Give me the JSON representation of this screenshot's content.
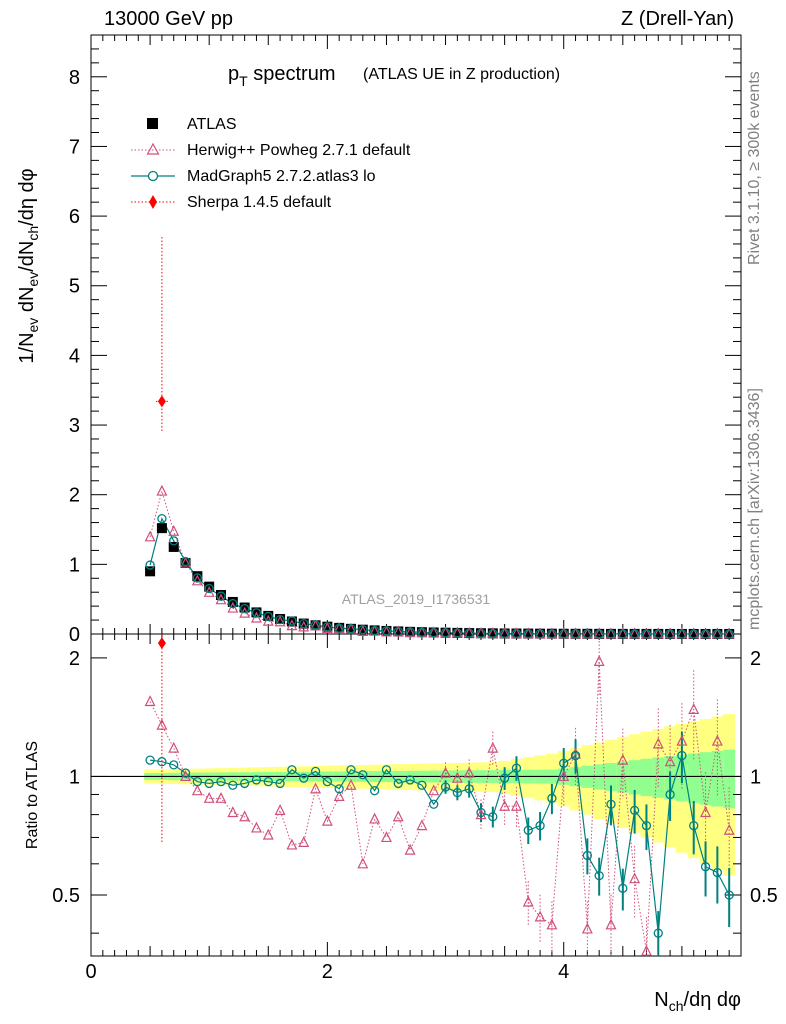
{
  "header": {
    "energy": "13000 GeV pp",
    "process": "Z (Drell-Yan)"
  },
  "side_labels": {
    "rivet": "Rivet 3.1.10, ≥ 300k events",
    "mcplots": "mcplots.cern.ch [arXiv:1306.3436]"
  },
  "chart_data": {
    "type": "scatter",
    "title": "p_T spectrum",
    "title_main": "p",
    "title_sub": "T",
    "title_rest": " spectrum",
    "title_note": "(ATLAS UE in Z production)",
    "analysis_label": "ATLAS_2019_I1736531",
    "xlabel": "N_ch/dη dφ",
    "ylabel": "1/N_ev dN_ev/dN_ch/dη dφ",
    "ratio_ylabel": "Ratio to ATLAS",
    "xlim": [
      0,
      5.5
    ],
    "ylim": [
      0,
      8.6
    ],
    "ratio_ylim": [
      0.35,
      2.3
    ],
    "x_ticks": [
      "0",
      "2",
      "4"
    ],
    "y_ticks": [
      "0",
      "1",
      "2",
      "3",
      "4",
      "5",
      "6",
      "7",
      "8"
    ],
    "ratio_ticks": [
      "0.5",
      "1",
      "2"
    ],
    "x": [
      0.5,
      0.6,
      0.7,
      0.8,
      0.9,
      1.0,
      1.1,
      1.2,
      1.3,
      1.4,
      1.5,
      1.6,
      1.7,
      1.8,
      1.9,
      2.0,
      2.1,
      2.2,
      2.3,
      2.4,
      2.5,
      2.6,
      2.7,
      2.8,
      2.9,
      3.0,
      3.1,
      3.2,
      3.3,
      3.4,
      3.5,
      3.6,
      3.7,
      3.8,
      3.9,
      4.0,
      4.1,
      4.2,
      4.3,
      4.4,
      4.5,
      4.6,
      4.7,
      4.8,
      4.9,
      5.0,
      5.1,
      5.2,
      5.3,
      5.4
    ],
    "series": [
      {
        "name": "ATLAS",
        "label": "ATLAS",
        "color": "#000000",
        "values": [
          0.9,
          1.52,
          1.25,
          1.02,
          0.83,
          0.68,
          0.56,
          0.46,
          0.38,
          0.31,
          0.26,
          0.215,
          0.18,
          0.15,
          0.125,
          0.105,
          0.088,
          0.074,
          0.062,
          0.052,
          0.044,
          0.037,
          0.031,
          0.026,
          0.022,
          0.019,
          0.016,
          0.013,
          0.011,
          0.0095,
          0.008,
          0.0068,
          0.0058,
          0.0049,
          0.0042,
          0.0036,
          0.003,
          0.0026,
          0.0022,
          0.0019,
          0.0016,
          0.0014,
          0.0012,
          0.001,
          0.00085,
          0.00072,
          0.0006,
          0.0005,
          0.00043,
          0.00036
        ]
      },
      {
        "name": "Herwig",
        "label": "Herwig++ Powheg 2.7.1 default",
        "color": "#d0507a",
        "ratio": [
          1.55,
          1.35,
          1.18,
          1.0,
          0.92,
          0.88,
          0.88,
          0.81,
          0.79,
          0.74,
          0.71,
          0.82,
          0.67,
          0.68,
          0.93,
          0.77,
          0.89,
          0.95,
          0.6,
          0.78,
          0.7,
          0.79,
          0.65,
          0.75,
          0.92,
          1.02,
          0.99,
          1.02,
          0.8,
          1.18,
          0.84,
          0.84,
          0.48,
          0.44,
          0.42,
          1.0,
          1.14,
          0.41,
          1.96,
          0.42,
          1.1,
          0.55,
          0.36,
          1.21,
          1.09,
          1.23,
          1.48,
          0.81,
          1.23,
          0.73
        ]
      },
      {
        "name": "MadGraph",
        "label": "MadGraph5 2.7.2.atlas3 lo",
        "color": "#008080",
        "ratio": [
          1.1,
          1.09,
          1.07,
          1.02,
          0.97,
          0.96,
          0.97,
          0.95,
          0.96,
          0.98,
          0.97,
          0.96,
          1.04,
          0.99,
          1.03,
          0.97,
          0.93,
          1.04,
          1.01,
          0.92,
          1.04,
          0.96,
          0.98,
          0.95,
          0.85,
          0.94,
          0.91,
          0.93,
          0.81,
          0.79,
          0.99,
          1.05,
          0.73,
          0.75,
          0.88,
          1.08,
          1.13,
          0.63,
          0.56,
          0.85,
          0.52,
          0.82,
          0.75,
          0.4,
          0.9,
          1.13,
          0.75,
          0.59,
          0.57,
          0.5
        ]
      },
      {
        "name": "Sherpa",
        "label": "Sherpa 1.4.5 default",
        "color": "#ff0000",
        "x": [
          0.6
        ],
        "values": [
          3.34
        ],
        "ratio": [
          2.18
        ]
      }
    ],
    "sherpa_err_main": [
      2.9,
      5.7
    ],
    "sherpa_err_ratio": [
      0.68,
      2.3
    ]
  }
}
